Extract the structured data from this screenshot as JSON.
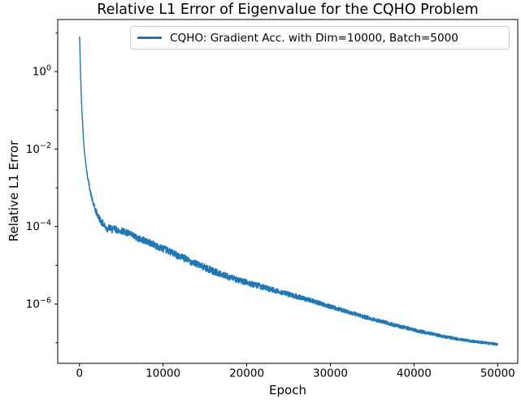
{
  "chart_data": {
    "type": "line",
    "title": "Relative L1 Error of Eigenvalue for the CQHO Problem",
    "xlabel": "Epoch",
    "ylabel": "Relative L1 Error",
    "grid": false,
    "legend": {
      "position": "upper right",
      "label": "CQHO: Gradient Acc. with Dim=10000, Batch=5000"
    },
    "x_ticks": [
      0,
      10000,
      20000,
      30000,
      40000,
      50000
    ],
    "x_tick_labels": [
      "0",
      "10000",
      "20000",
      "30000",
      "40000",
      "50000"
    ],
    "y_tick_exponents": [
      0,
      -2,
      -4,
      -6
    ],
    "y_minor_tick_exponents": [
      1,
      -1,
      -3,
      -5,
      -7
    ],
    "xlim": [
      -2600,
      52400
    ],
    "ylim_exponents": [
      -7.53,
      1.3425
    ],
    "colors": {
      "line": "#1f77b4",
      "frame": "#000000",
      "text": "#000000",
      "legend_border": "#cccccc",
      "background": "#ffffff"
    },
    "series": [
      {
        "name": "CQHO: Gradient Acc. with Dim=10000, Batch=5000",
        "points": [
          [
            20,
            8.0
          ],
          [
            60,
            3.5
          ],
          [
            120,
            1.1
          ],
          [
            200,
            0.3
          ],
          [
            300,
            0.095
          ],
          [
            420,
            0.03
          ],
          [
            550,
            0.011
          ],
          [
            700,
            0.0055
          ],
          [
            850,
            0.0029
          ],
          [
            1000,
            0.0018
          ],
          [
            1300,
            0.0008
          ],
          [
            1600,
            0.00042
          ],
          [
            1900,
            0.00027
          ],
          [
            2200,
            0.00019
          ],
          [
            2600,
            0.000135
          ],
          [
            3000,
            0.000105
          ],
          [
            3300,
            8.6e-05
          ],
          [
            3600,
            9.5e-05
          ],
          [
            3900,
            8.2e-05
          ],
          [
            4200,
            8.8e-05
          ],
          [
            4600,
            7.9e-05
          ],
          [
            5200,
            7.7e-05
          ],
          [
            6000,
            6.4e-05
          ],
          [
            7000,
            5e-05
          ],
          [
            8000,
            4.2e-05
          ],
          [
            9000,
            3.3e-05
          ],
          [
            10000,
            2.7e-05
          ],
          [
            11000,
            2.15e-05
          ],
          [
            12000,
            1.7e-05
          ],
          [
            13000,
            1.35e-05
          ],
          [
            14000,
            1.08e-05
          ],
          [
            15000,
            8.7e-06
          ],
          [
            16000,
            7.1e-06
          ],
          [
            17000,
            5.8e-06
          ],
          [
            18000,
            4.9e-06
          ],
          [
            19000,
            4.1e-06
          ],
          [
            20000,
            3.6e-06
          ],
          [
            21000,
            3.1e-06
          ],
          [
            22000,
            2.7e-06
          ],
          [
            23000,
            2.35e-06
          ],
          [
            24000,
            2.05e-06
          ],
          [
            25000,
            1.8e-06
          ],
          [
            26000,
            1.55e-06
          ],
          [
            27000,
            1.35e-06
          ],
          [
            28000,
            1.17e-06
          ],
          [
            29000,
            1e-06
          ],
          [
            30000,
            8.6e-07
          ],
          [
            31000,
            7.4e-07
          ],
          [
            32000,
            6.4e-07
          ],
          [
            33000,
            5.5e-07
          ],
          [
            34000,
            4.7e-07
          ],
          [
            35000,
            4.1e-07
          ],
          [
            36000,
            3.6e-07
          ],
          [
            37000,
            3.15e-07
          ],
          [
            38000,
            2.75e-07
          ],
          [
            39000,
            2.45e-07
          ],
          [
            40000,
            2.15e-07
          ],
          [
            41000,
            1.92e-07
          ],
          [
            42000,
            1.72e-07
          ],
          [
            43000,
            1.55e-07
          ],
          [
            44000,
            1.4e-07
          ],
          [
            45000,
            1.28e-07
          ],
          [
            46000,
            1.18e-07
          ],
          [
            47000,
            1.1e-07
          ],
          [
            48000,
            1.03e-07
          ],
          [
            49000,
            9.7e-08
          ],
          [
            50000,
            9.2e-08
          ]
        ],
        "noise_profile_decades": [
          [
            0,
            0.0
          ],
          [
            400,
            0.005
          ],
          [
            700,
            0.03
          ],
          [
            1000,
            0.05
          ],
          [
            2000,
            0.08
          ],
          [
            2500,
            0.09
          ],
          [
            16000,
            0.09
          ],
          [
            30000,
            0.055
          ],
          [
            40000,
            0.045
          ],
          [
            50000,
            0.032
          ]
        ]
      }
    ]
  }
}
